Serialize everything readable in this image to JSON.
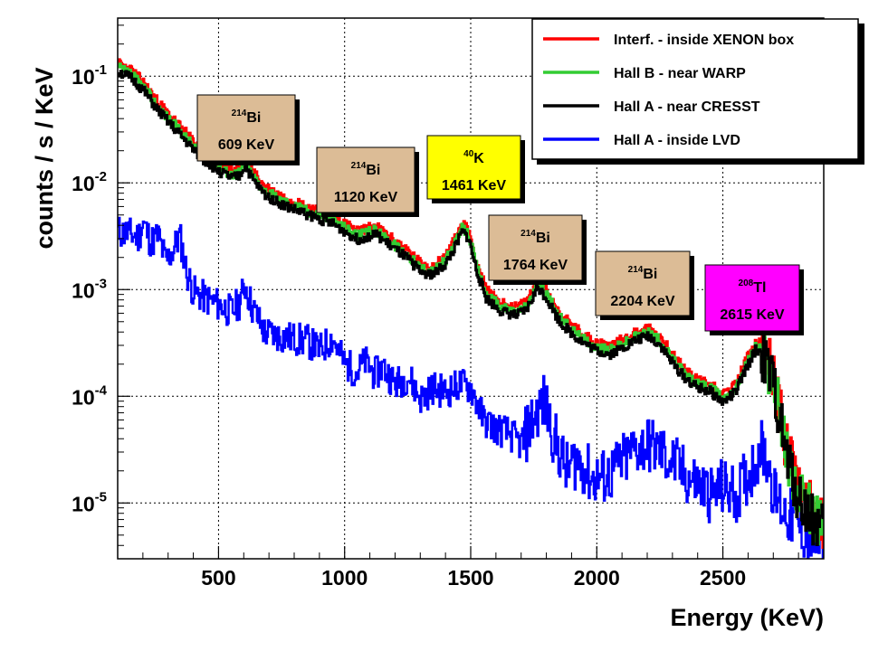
{
  "chart_data": {
    "type": "line",
    "xlabel": "Energy (KeV)",
    "ylabel": "counts / s / KeV",
    "xlim": [
      100,
      2900
    ],
    "ylim": [
      3e-06,
      0.35
    ],
    "yscale": "log",
    "grid": true,
    "legend_position": "top-right",
    "x_ticks": [
      {
        "value": 500,
        "label": "500"
      },
      {
        "value": 1000,
        "label": "1000"
      },
      {
        "value": 1500,
        "label": "1500"
      },
      {
        "value": 2000,
        "label": "2000"
      },
      {
        "value": 2500,
        "label": "2500"
      }
    ],
    "y_ticks": [
      {
        "value": 0.1,
        "base": "10",
        "exp": "-1"
      },
      {
        "value": 0.01,
        "base": "10",
        "exp": "-2"
      },
      {
        "value": 0.001,
        "base": "10",
        "exp": "-3"
      },
      {
        "value": 0.0001,
        "base": "10",
        "exp": "-4"
      },
      {
        "value": 1e-05,
        "base": "10",
        "exp": "-5"
      }
    ],
    "series": [
      {
        "key": "xenon",
        "name": "Interf. - inside XENON box",
        "color": "#ff0000",
        "scale": 1.1,
        "points": [
          [
            100,
            0.12
          ],
          [
            150,
            0.105
          ],
          [
            200,
            0.08
          ],
          [
            250,
            0.055
          ],
          [
            300,
            0.04
          ],
          [
            350,
            0.03
          ],
          [
            400,
            0.022
          ],
          [
            450,
            0.017
          ],
          [
            500,
            0.014
          ],
          [
            550,
            0.012
          ],
          [
            580,
            0.0125
          ],
          [
            605,
            0.016
          ],
          [
            630,
            0.012
          ],
          [
            680,
            0.0085
          ],
          [
            750,
            0.0068
          ],
          [
            850,
            0.0055
          ],
          [
            950,
            0.0045
          ],
          [
            1000,
            0.0038
          ],
          [
            1050,
            0.0032
          ],
          [
            1120,
            0.0036
          ],
          [
            1180,
            0.0028
          ],
          [
            1250,
            0.0021
          ],
          [
            1300,
            0.0016
          ],
          [
            1350,
            0.0015
          ],
          [
            1400,
            0.0019
          ],
          [
            1440,
            0.0028
          ],
          [
            1465,
            0.0038
          ],
          [
            1490,
            0.0033
          ],
          [
            1520,
            0.0017
          ],
          [
            1560,
            0.0009
          ],
          [
            1620,
            0.00068
          ],
          [
            1680,
            0.00062
          ],
          [
            1720,
            0.0007
          ],
          [
            1765,
            0.00115
          ],
          [
            1800,
            0.0009
          ],
          [
            1850,
            0.00055
          ],
          [
            1900,
            0.00042
          ],
          [
            1950,
            0.00034
          ],
          [
            2000,
            0.00029
          ],
          [
            2050,
            0.00027
          ],
          [
            2100,
            0.00031
          ],
          [
            2150,
            0.00036
          ],
          [
            2204,
            0.0004
          ],
          [
            2250,
            0.00033
          ],
          [
            2300,
            0.00022
          ],
          [
            2350,
            0.00016
          ],
          [
            2400,
            0.00013
          ],
          [
            2450,
            0.00012
          ],
          [
            2500,
            9.5e-05
          ],
          [
            2550,
            0.00012
          ],
          [
            2600,
            0.00022
          ],
          [
            2630,
            0.0003
          ],
          [
            2650,
            0.00028
          ],
          [
            2700,
            0.00014
          ],
          [
            2750,
            3e-05
          ],
          [
            2800,
            1.2e-05
          ],
          [
            2850,
            8e-06
          ],
          [
            2900,
            6e-06
          ]
        ]
      },
      {
        "key": "warp",
        "name": "Hall B - near WARP",
        "color": "#33cc33",
        "scale": 1.0,
        "points": [
          [
            100,
            0.12
          ],
          [
            150,
            0.105
          ],
          [
            200,
            0.08
          ],
          [
            250,
            0.055
          ],
          [
            300,
            0.04
          ],
          [
            350,
            0.03
          ],
          [
            400,
            0.022
          ],
          [
            450,
            0.017
          ],
          [
            500,
            0.014
          ],
          [
            550,
            0.012
          ],
          [
            580,
            0.0125
          ],
          [
            605,
            0.016
          ],
          [
            630,
            0.012
          ],
          [
            680,
            0.0085
          ],
          [
            750,
            0.0068
          ],
          [
            850,
            0.0055
          ],
          [
            950,
            0.0045
          ],
          [
            1000,
            0.0038
          ],
          [
            1050,
            0.0032
          ],
          [
            1120,
            0.0036
          ],
          [
            1180,
            0.0028
          ],
          [
            1250,
            0.0021
          ],
          [
            1300,
            0.0016
          ],
          [
            1350,
            0.0015
          ],
          [
            1400,
            0.0019
          ],
          [
            1440,
            0.0028
          ],
          [
            1465,
            0.0038
          ],
          [
            1490,
            0.0033
          ],
          [
            1520,
            0.0017
          ],
          [
            1560,
            0.0009
          ],
          [
            1620,
            0.00068
          ],
          [
            1680,
            0.00062
          ],
          [
            1720,
            0.0007
          ],
          [
            1765,
            0.00115
          ],
          [
            1800,
            0.0009
          ],
          [
            1850,
            0.00055
          ],
          [
            1900,
            0.00042
          ],
          [
            1950,
            0.00034
          ],
          [
            2000,
            0.00029
          ],
          [
            2050,
            0.00027
          ],
          [
            2100,
            0.00031
          ],
          [
            2150,
            0.00036
          ],
          [
            2204,
            0.0004
          ],
          [
            2250,
            0.00033
          ],
          [
            2300,
            0.00022
          ],
          [
            2350,
            0.00016
          ],
          [
            2400,
            0.00013
          ],
          [
            2450,
            0.00012
          ],
          [
            2500,
            9.5e-05
          ],
          [
            2550,
            0.00012
          ],
          [
            2600,
            0.00022
          ],
          [
            2630,
            0.0003
          ],
          [
            2650,
            0.00028
          ],
          [
            2700,
            0.00014
          ],
          [
            2750,
            3e-05
          ],
          [
            2800,
            1.2e-05
          ],
          [
            2850,
            8e-06
          ],
          [
            2900,
            6e-06
          ]
        ]
      },
      {
        "key": "cresst",
        "name": "Hall A - near CRESST",
        "color": "#000000",
        "scale": 0.92,
        "points": [
          [
            100,
            0.12
          ],
          [
            150,
            0.105
          ],
          [
            200,
            0.08
          ],
          [
            250,
            0.055
          ],
          [
            300,
            0.04
          ],
          [
            350,
            0.03
          ],
          [
            400,
            0.022
          ],
          [
            450,
            0.017
          ],
          [
            500,
            0.014
          ],
          [
            550,
            0.012
          ],
          [
            580,
            0.0125
          ],
          [
            605,
            0.016
          ],
          [
            630,
            0.012
          ],
          [
            680,
            0.0085
          ],
          [
            750,
            0.0068
          ],
          [
            850,
            0.0055
          ],
          [
            950,
            0.0045
          ],
          [
            1000,
            0.0038
          ],
          [
            1050,
            0.0032
          ],
          [
            1120,
            0.0036
          ],
          [
            1180,
            0.0028
          ],
          [
            1250,
            0.0021
          ],
          [
            1300,
            0.0016
          ],
          [
            1350,
            0.0015
          ],
          [
            1400,
            0.0019
          ],
          [
            1440,
            0.0028
          ],
          [
            1465,
            0.0038
          ],
          [
            1490,
            0.0033
          ],
          [
            1520,
            0.0017
          ],
          [
            1560,
            0.0009
          ],
          [
            1620,
            0.00068
          ],
          [
            1680,
            0.00062
          ],
          [
            1720,
            0.0007
          ],
          [
            1765,
            0.00115
          ],
          [
            1800,
            0.0009
          ],
          [
            1850,
            0.00055
          ],
          [
            1900,
            0.00042
          ],
          [
            1950,
            0.00034
          ],
          [
            2000,
            0.00029
          ],
          [
            2050,
            0.00027
          ],
          [
            2100,
            0.00031
          ],
          [
            2150,
            0.00036
          ],
          [
            2204,
            0.0004
          ],
          [
            2250,
            0.00033
          ],
          [
            2300,
            0.00022
          ],
          [
            2350,
            0.00016
          ],
          [
            2400,
            0.00013
          ],
          [
            2450,
            0.00012
          ],
          [
            2500,
            9.5e-05
          ],
          [
            2550,
            0.00012
          ],
          [
            2600,
            0.00022
          ],
          [
            2630,
            0.0003
          ],
          [
            2650,
            0.00028
          ],
          [
            2700,
            0.00014
          ],
          [
            2750,
            3e-05
          ],
          [
            2800,
            1.2e-05
          ],
          [
            2850,
            8e-06
          ],
          [
            2900,
            6e-06
          ]
        ]
      },
      {
        "key": "lvd",
        "name": "Hall A - inside LVD",
        "color": "#0000ff",
        "scale": 1.0,
        "points": [
          [
            100,
            0.0035
          ],
          [
            150,
            0.0033
          ],
          [
            180,
            0.0031
          ],
          [
            200,
            0.0042
          ],
          [
            230,
            0.0028
          ],
          [
            260,
            0.0032
          ],
          [
            290,
            0.0018
          ],
          [
            320,
            0.0024
          ],
          [
            345,
            0.0032
          ],
          [
            370,
            0.0015
          ],
          [
            400,
            0.00095
          ],
          [
            450,
            0.00082
          ],
          [
            500,
            0.00072
          ],
          [
            550,
            0.00062
          ],
          [
            580,
            0.00075
          ],
          [
            605,
            0.0011
          ],
          [
            630,
            0.0007
          ],
          [
            680,
            0.0004
          ],
          [
            750,
            0.00036
          ],
          [
            850,
            0.00033
          ],
          [
            900,
            0.00027
          ],
          [
            950,
            0.00035
          ],
          [
            1000,
            0.0002
          ],
          [
            1050,
            0.00017
          ],
          [
            1080,
            0.00021
          ],
          [
            1120,
            0.00016
          ],
          [
            1150,
            0.00019
          ],
          [
            1200,
            0.00013
          ],
          [
            1250,
            0.000155
          ],
          [
            1300,
            9.5e-05
          ],
          [
            1350,
            0.00012
          ],
          [
            1400,
            0.00011
          ],
          [
            1460,
            0.00013
          ],
          [
            1500,
            0.00012
          ],
          [
            1550,
            6e-05
          ],
          [
            1600,
            5e-05
          ],
          [
            1650,
            4.5e-05
          ],
          [
            1700,
            3.5e-05
          ],
          [
            1750,
            6.5e-05
          ],
          [
            1790,
            9e-05
          ],
          [
            1830,
            4e-05
          ],
          [
            1880,
            2e-05
          ],
          [
            1920,
            2.6e-05
          ],
          [
            1980,
            1.7e-05
          ],
          [
            2050,
            1.8e-05
          ],
          [
            2100,
            2.4e-05
          ],
          [
            2150,
            3.2e-05
          ],
          [
            2200,
            3.6e-05
          ],
          [
            2250,
            3e-05
          ],
          [
            2300,
            2.4e-05
          ],
          [
            2350,
            1.8e-05
          ],
          [
            2400,
            1.5e-05
          ],
          [
            2450,
            1.2e-05
          ],
          [
            2500,
            1.4e-05
          ],
          [
            2550,
            1.2e-05
          ],
          [
            2600,
            1.8e-05
          ],
          [
            2630,
            2.6e-05
          ],
          [
            2650,
            3.4e-05
          ],
          [
            2680,
            2.4e-05
          ],
          [
            2700,
            1.2e-05
          ],
          [
            2750,
            8e-06
          ],
          [
            2800,
            6e-06
          ],
          [
            2850,
            4.5e-06
          ],
          [
            2900,
            4e-06
          ]
        ]
      }
    ],
    "annotations": [
      {
        "key": "bi609",
        "sup": "214",
        "isotope": "Bi",
        "energy": "609 KeV",
        "color": "#dcbc96"
      },
      {
        "key": "bi1120",
        "sup": "214",
        "isotope": "Bi",
        "energy": "1120 KeV",
        "color": "#dcbc96"
      },
      {
        "key": "k1461",
        "sup": "40",
        "isotope": "K",
        "energy": "1461 KeV",
        "color": "#ffff00"
      },
      {
        "key": "bi1764",
        "sup": "214",
        "isotope": "Bi",
        "energy": "1764 KeV",
        "color": "#dcbc96"
      },
      {
        "key": "bi2204",
        "sup": "214",
        "isotope": "Bi",
        "energy": "2204 KeV",
        "color": "#dcbc96"
      },
      {
        "key": "tl2615",
        "sup": "208",
        "isotope": "Tl",
        "energy": "2615 KeV",
        "color": "#ff00ff"
      }
    ]
  }
}
